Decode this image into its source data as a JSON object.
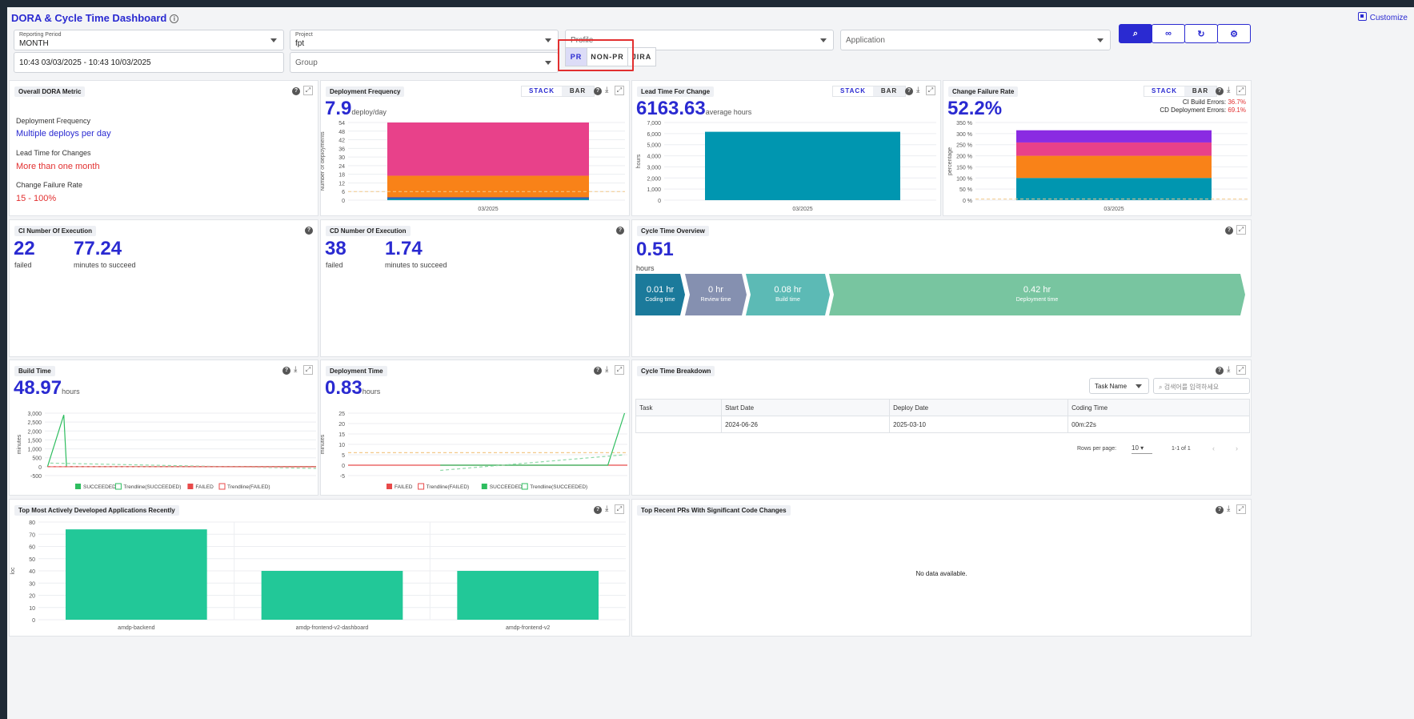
{
  "header": {
    "title": "DORA & Cycle Time Dashboard",
    "customize": "Customize"
  },
  "filters": {
    "reporting_period": {
      "label": "Reporting Period",
      "value": "MONTH"
    },
    "project": {
      "label": "Project",
      "value": "fpt"
    },
    "profile": {
      "placeholder": "Profile"
    },
    "application": {
      "placeholder": "Application"
    },
    "date_range": "10:43 03/03/2025 - 10:43 10/03/2025",
    "group": {
      "placeholder": "Group"
    },
    "toggles": [
      "PR",
      "NON-PR",
      "JIRA"
    ],
    "active_toggle": "PR"
  },
  "toolbar": {
    "icons": [
      "search-icon",
      "link-icon",
      "refresh-icon",
      "gear-icon"
    ]
  },
  "segment": {
    "stack": "STACK",
    "bar": "BAR"
  },
  "overall": {
    "title": "Overall DORA Metric",
    "items": [
      {
        "label": "Deployment Frequency",
        "value": "Multiple deploys per day",
        "color": "#2a2ad1"
      },
      {
        "label": "Lead Time for Changes",
        "value": "More than one month",
        "color": "#e23030"
      },
      {
        "label": "Change Failure Rate",
        "value": "15 - 100%",
        "color": "#e23030"
      }
    ]
  },
  "deploy_freq": {
    "title": "Deployment Frequency",
    "value": "7.9",
    "unit": "deploy/day"
  },
  "lead_time": {
    "title": "Lead Time For Change",
    "value": "6163.63",
    "unit": "average hours"
  },
  "cfr": {
    "title": "Change Failure Rate",
    "value": "52.2%",
    "ci_label": "CI Build Errors:",
    "ci_value": "36.7%",
    "cd_label": "CD Deployment Errors:",
    "cd_value": "69.1%"
  },
  "ci_exec": {
    "title": "CI Number Of Execution",
    "failed": "22",
    "failed_label": "failed",
    "minutes": "77.24",
    "minutes_label": "minutes to succeed"
  },
  "cd_exec": {
    "title": "CD Number Of Execution",
    "failed": "38",
    "failed_label": "failed",
    "minutes": "1.74",
    "minutes_label": "minutes to succeed"
  },
  "cycle_overview": {
    "title": "Cycle Time Overview",
    "value": "0.51",
    "unit": "hours",
    "steps": [
      {
        "value": "0.01 hr",
        "name": "Coding time",
        "color": "#1b7a9b"
      },
      {
        "value": "0 hr",
        "name": "Review time",
        "color": "#8590b0"
      },
      {
        "value": "0.08 hr",
        "name": "Build time",
        "color": "#5cbab5"
      },
      {
        "value": "0.42 hr",
        "name": "Deployment time",
        "color": "#78c5a0"
      }
    ]
  },
  "build_time": {
    "title": "Build Time",
    "value": "48.97",
    "unit": "hours"
  },
  "deploy_time": {
    "title": "Deployment Time",
    "value": "0.83",
    "unit": "hours"
  },
  "breakdown": {
    "title": "Cycle Time Breakdown",
    "select": "Task Name",
    "search_placeholder": "검색어를 입력하세요",
    "columns": [
      "Task",
      "Start Date",
      "Deploy Date",
      "Coding Time"
    ],
    "rows": [
      [
        "",
        "2024-06-26",
        "2025-03-10",
        "00m:22s"
      ]
    ],
    "rows_per_page_label": "Rows per page:",
    "rows_per_page": "10",
    "range": "1-1 of 1"
  },
  "top_apps": {
    "title": "Top Most Actively Developed Applications Recently"
  },
  "top_prs": {
    "title": "Top Recent PRs With Significant Code Changes",
    "empty": "No data available."
  },
  "chart_data": [
    {
      "name": "deployment-frequency",
      "type": "bar",
      "stacked": true,
      "categories": [
        "03/2025"
      ],
      "ylabel": "Number of deployments",
      "ylim": [
        0,
        54
      ],
      "yticks": [
        0,
        6,
        12,
        18,
        24,
        30,
        36,
        42,
        48,
        54
      ],
      "series": [
        {
          "values": [
            1
          ],
          "color": "#0096b0"
        },
        {
          "values": [
            1
          ],
          "color": "#2a4fb0"
        },
        {
          "values": [
            15
          ],
          "color": "#f98218"
        },
        {
          "values": [
            37
          ],
          "color": "#e8418a"
        }
      ],
      "threshold": 6
    },
    {
      "name": "lead-time",
      "type": "bar",
      "categories": [
        "03/2025"
      ],
      "ylabel": "hours",
      "ylim": [
        0,
        7000
      ],
      "yticks": [
        "0",
        "1,000",
        "2,000",
        "3,000",
        "4,000",
        "5,000",
        "6,000",
        "7,000"
      ],
      "series": [
        {
          "values": [
            6163.63
          ],
          "color": "#0096b0"
        }
      ]
    },
    {
      "name": "change-failure-rate",
      "type": "bar",
      "stacked": true,
      "categories": [
        "03/2025"
      ],
      "ylabel": "percentage",
      "ylim": [
        0,
        350
      ],
      "yticks": [
        "0 %",
        "50 %",
        "100 %",
        "150 %",
        "200 %",
        "250 %",
        "300 %",
        "350 %"
      ],
      "series": [
        {
          "values": [
            100
          ],
          "color": "#0096b0"
        },
        {
          "values": [
            100
          ],
          "color": "#f98218"
        },
        {
          "values": [
            60
          ],
          "color": "#e8418a"
        },
        {
          "values": [
            55
          ],
          "color": "#8a2be2"
        }
      ]
    },
    {
      "name": "build-time",
      "type": "line",
      "ylabel": "minutes",
      "ylim": [
        -500,
        3000
      ],
      "yticks": [
        "-500",
        "0",
        "500",
        "1,000",
        "1,500",
        "2,000",
        "2,500",
        "3,000"
      ],
      "legend": [
        "SUCCEEDED",
        "Trendline(SUCCEEDED)",
        "FAILED",
        "Trendline(FAILED)"
      ]
    },
    {
      "name": "deployment-time",
      "type": "line",
      "ylabel": "minutes",
      "ylim": [
        -5,
        25
      ],
      "yticks": [
        "-5",
        "0",
        "5",
        "10",
        "15",
        "20",
        "25"
      ],
      "legend": [
        "FAILED",
        "Trendline(FAILED)",
        "SUCCEEDED",
        "Trendline(SUCCEEDED)"
      ]
    },
    {
      "name": "top-apps",
      "type": "bar",
      "ylabel": "loc",
      "ylim": [
        0,
        80
      ],
      "yticks": [
        0,
        10,
        20,
        30,
        40,
        50,
        60,
        70,
        80
      ],
      "categories": [
        "amdp-backend",
        "amdp-frontend-v2-dashboard",
        "amdp-frontend-v2"
      ],
      "values": [
        74,
        40,
        40
      ],
      "color": "#22c898"
    }
  ]
}
